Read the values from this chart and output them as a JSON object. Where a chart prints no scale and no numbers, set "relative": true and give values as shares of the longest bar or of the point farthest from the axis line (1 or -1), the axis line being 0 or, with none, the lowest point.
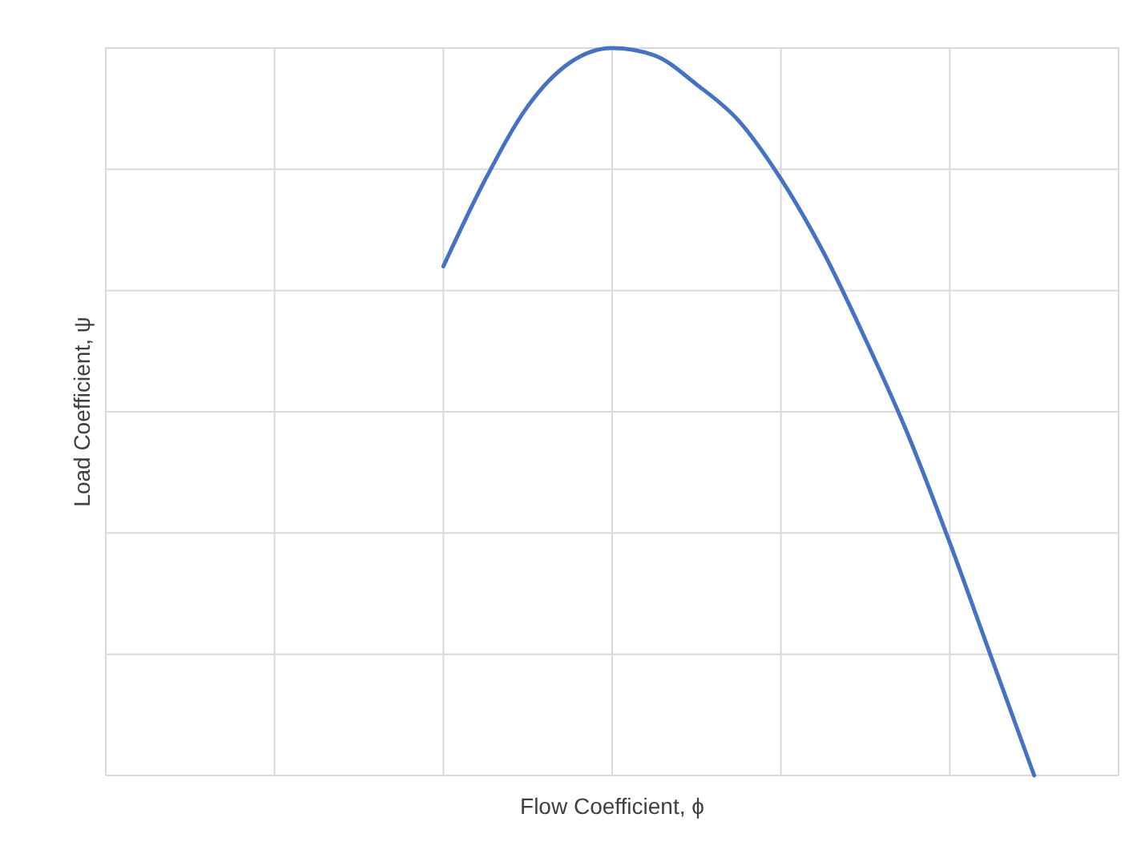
{
  "chart_data": {
    "type": "line",
    "relative": true,
    "xlabel": "Flow Coefficient, ϕ",
    "ylabel": "Load Coefficient, ψ",
    "grid": true,
    "categories": [
      null,
      null,
      null,
      null,
      null,
      null,
      null,
      null,
      null,
      null,
      null,
      null,
      null,
      null,
      null,
      null,
      null,
      null,
      null,
      null,
      null,
      null,
      null,
      null,
      null
    ],
    "series": [
      {
        "color": "#4472c4",
        "values": [
          null,
          null,
          null,
          null,
          null,
          null,
          null,
          null,
          0.7,
          0.82,
          0.92,
          0.98,
          1,
          0.99,
          0.95,
          0.9,
          0.82,
          0.72,
          0.6,
          0.47,
          0.32,
          0.16,
          0,
          null,
          null
        ]
      }
    ]
  }
}
